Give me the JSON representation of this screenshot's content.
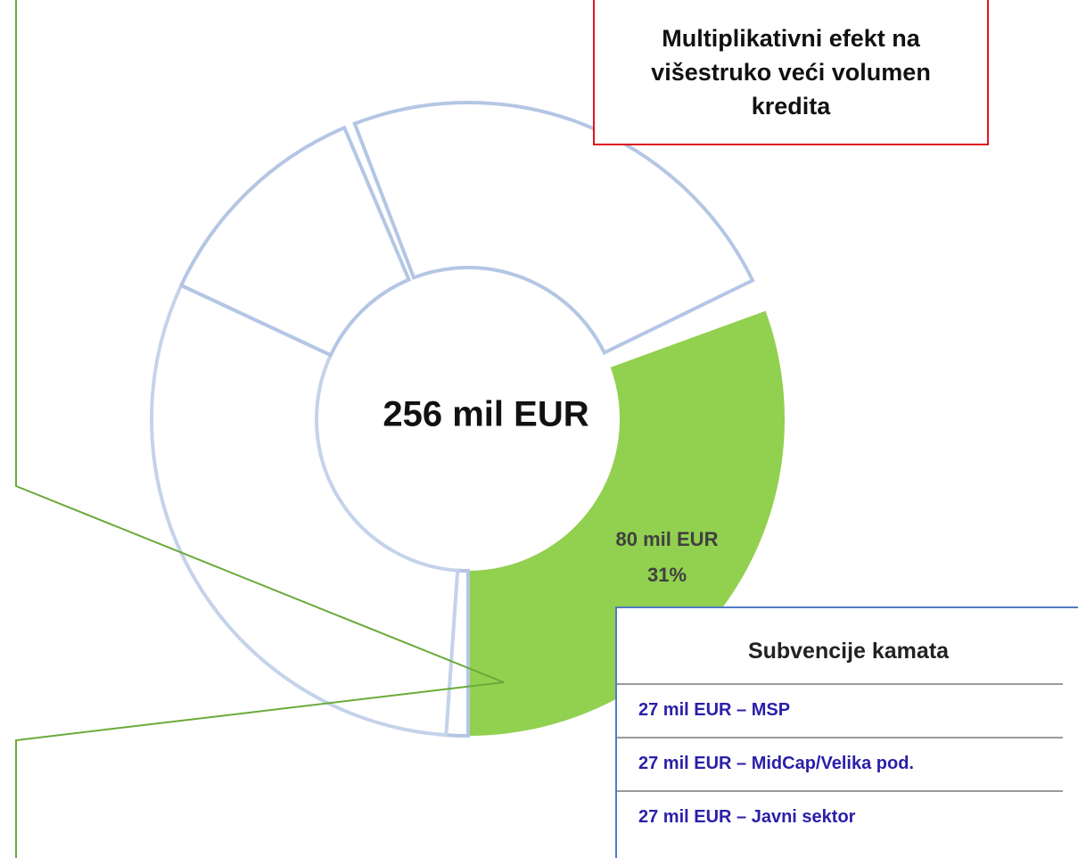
{
  "center_label": "256 mil EUR",
  "segment_label": {
    "amount": "80 mil EUR",
    "share": "31%"
  },
  "callout": "Multiplikativni efekt na višestruko veći volumen kredita",
  "detail_box": {
    "title": "Subvencije kamata",
    "rows": [
      "27 mil EUR – MSP",
      "27 mil EUR – MidCap/Velika pod.",
      "27 mil EUR – Javni sektor"
    ]
  }
}
